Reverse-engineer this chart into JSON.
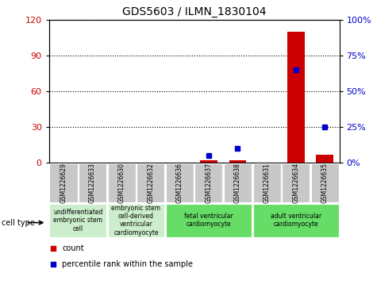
{
  "title": "GDS5603 / ILMN_1830104",
  "samples": [
    "GSM1226629",
    "GSM1226633",
    "GSM1226630",
    "GSM1226632",
    "GSM1226636",
    "GSM1226637",
    "GSM1226638",
    "GSM1226631",
    "GSM1226634",
    "GSM1226635"
  ],
  "count_values": [
    0,
    0,
    0,
    0,
    0,
    2,
    2,
    0,
    110,
    7
  ],
  "percentile_values": [
    null,
    null,
    null,
    null,
    null,
    5,
    10,
    null,
    65,
    25
  ],
  "left_yaxis": {
    "min": 0,
    "max": 120,
    "ticks": [
      0,
      30,
      60,
      90,
      120
    ],
    "color": "#cc0000"
  },
  "right_yaxis": {
    "min": 0,
    "max": 100,
    "ticks": [
      0,
      25,
      50,
      75,
      100
    ],
    "color": "#0000cc"
  },
  "cell_types": [
    {
      "label": "undifferentiated\nembryonic stem\ncell",
      "start": 0,
      "end": 2,
      "color": "#cceecc"
    },
    {
      "label": "embryonic stem\ncell-derived\nventricular\ncardiomyocyte",
      "start": 2,
      "end": 4,
      "color": "#cceecc"
    },
    {
      "label": "fetal ventricular\ncardiomyocyte",
      "start": 4,
      "end": 7,
      "color": "#66dd66"
    },
    {
      "label": "adult ventricular\ncardiomyocyte",
      "start": 7,
      "end": 10,
      "color": "#66dd66"
    }
  ],
  "bar_color": "#cc0000",
  "dot_color": "#0000cc",
  "plot_bg": "#ffffff",
  "tick_area_bg": "#c8c8c8"
}
